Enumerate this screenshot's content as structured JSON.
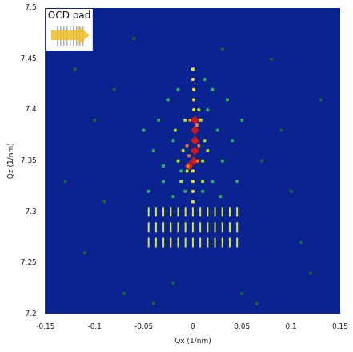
{
  "chart_data": {
    "type": "scatter",
    "xlabel": "Qx (1/nm)",
    "ylabel": "Qz (1/nm)",
    "annotations": [
      {
        "text": "OCD pad"
      }
    ],
    "xlim": [
      -0.15,
      0.15
    ],
    "xticks": [
      -0.15,
      -0.1,
      -0.05,
      0,
      0.05,
      0.1,
      0.15
    ],
    "ylim": [
      7.2,
      7.5
    ],
    "yticks": [
      7.2,
      7.25,
      7.3,
      7.35,
      7.4,
      7.45,
      7.5
    ],
    "grid": false,
    "series": [
      {
        "color": "#1a6b2a",
        "marker": "square",
        "x": [
          -0.12,
          -0.09,
          -0.07,
          -0.11,
          0.08,
          0.1,
          0.12,
          0.065,
          -0.06,
          0.03,
          -0.02,
          0.05,
          0.09,
          -0.1,
          0.13,
          -0.13,
          0.11,
          -0.08,
          0.07,
          -0.04
        ],
        "y": [
          7.44,
          7.31,
          7.22,
          7.26,
          7.45,
          7.32,
          7.24,
          7.21,
          7.47,
          7.46,
          7.23,
          7.22,
          7.38,
          7.39,
          7.41,
          7.33,
          7.27,
          7.42,
          7.35,
          7.21
        ]
      },
      {
        "color": "#2db84a",
        "marker": "square",
        "x": [
          -0.04,
          -0.035,
          -0.03,
          -0.025,
          -0.02,
          -0.015,
          -0.012,
          -0.03,
          0.015,
          0.02,
          0.025,
          0.03,
          0.035,
          0.04,
          0.012,
          -0.045,
          0.045,
          -0.05,
          0.05,
          -0.008,
          0.01,
          0.02,
          -0.02,
          0.028
        ],
        "y": [
          7.36,
          7.39,
          7.33,
          7.41,
          7.37,
          7.42,
          7.34,
          7.345,
          7.4,
          7.33,
          7.38,
          7.35,
          7.41,
          7.37,
          7.43,
          7.32,
          7.33,
          7.38,
          7.39,
          7.32,
          7.32,
          7.42,
          7.315,
          7.315
        ]
      },
      {
        "color": "#d8e830",
        "marker": "line",
        "x": [
          -0.045,
          -0.045,
          -0.045,
          -0.0375,
          -0.0375,
          -0.0375,
          -0.03,
          -0.03,
          -0.03,
          -0.0225,
          -0.0225,
          -0.0225,
          -0.015,
          -0.015,
          -0.015,
          -0.0075,
          -0.0075,
          -0.0075,
          0,
          0,
          0,
          0.0075,
          0.0075,
          0.0075,
          0.015,
          0.015,
          0.015,
          0.0225,
          0.0225,
          0.0225,
          0.03,
          0.03,
          0.03,
          0.0375,
          0.0375,
          0.0375,
          0.045,
          0.045,
          0.045
        ],
        "y": [
          7.27,
          7.285,
          7.3,
          7.27,
          7.285,
          7.3,
          7.27,
          7.285,
          7.3,
          7.27,
          7.285,
          7.3,
          7.27,
          7.285,
          7.3,
          7.27,
          7.285,
          7.3,
          7.27,
          7.285,
          7.3,
          7.27,
          7.285,
          7.3,
          7.27,
          7.285,
          7.3,
          7.27,
          7.285,
          7.3,
          7.27,
          7.285,
          7.3,
          7.27,
          7.285,
          7.3,
          7.27,
          7.285,
          7.3
        ]
      },
      {
        "color": "#b5e61d",
        "marker": "square",
        "x": [
          -0.015,
          -0.01,
          -0.018,
          -0.008,
          0.01,
          0.012,
          0.015,
          0.008,
          -0.012,
          0.01,
          -0.006,
          0.006
        ],
        "y": [
          7.35,
          7.36,
          7.38,
          7.39,
          7.35,
          7.37,
          7.36,
          7.39,
          7.33,
          7.33,
          7.34,
          7.4
        ]
      },
      {
        "color": "#f0e020",
        "marker": "square",
        "x": [
          0,
          0,
          0,
          0,
          0.001,
          0.001,
          0.001,
          0,
          0
        ],
        "y": [
          7.31,
          7.32,
          7.33,
          7.34,
          7.4,
          7.41,
          7.42,
          7.43,
          7.44
        ]
      },
      {
        "color": "#f08020",
        "marker": "square",
        "x": [
          -0.005,
          -0.004,
          0.005,
          0.004,
          -0.003,
          0.006,
          -0.006
        ],
        "y": [
          7.345,
          7.355,
          7.35,
          7.385,
          7.39,
          7.365,
          7.365
        ]
      },
      {
        "color": "#d01818",
        "marker": "diamond",
        "x": [
          0.001,
          0.002,
          0.002,
          0.002,
          0.002,
          -0.004
        ],
        "y": [
          7.35,
          7.36,
          7.37,
          7.38,
          7.39,
          7.345
        ]
      }
    ]
  }
}
